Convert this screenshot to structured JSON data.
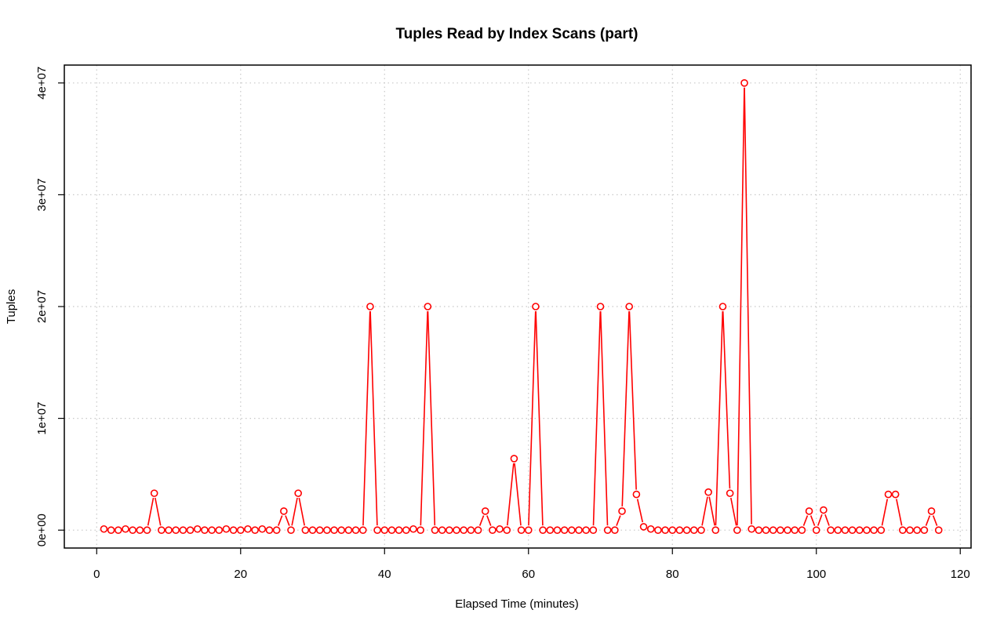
{
  "chart_data": {
    "type": "line",
    "title": "Tuples Read by Index Scans (part)",
    "xlabel": "Elapsed Time (minutes)",
    "ylabel": "Tuples",
    "xlim": [
      -4.5,
      121.5
    ],
    "ylim": [
      -1600000,
      41600000
    ],
    "x_ticks": [
      0,
      20,
      40,
      60,
      80,
      100,
      120
    ],
    "x_tick_labels": [
      "0",
      "20",
      "40",
      "60",
      "80",
      "100",
      "120"
    ],
    "y_ticks": [
      0,
      10000000,
      20000000,
      30000000,
      40000000
    ],
    "y_tick_labels": [
      "0e+00",
      "1e+07",
      "2e+07",
      "3e+07",
      "4e+07"
    ],
    "grid": true,
    "line_color": "#ff0000",
    "series": [
      {
        "x": [
          1,
          2,
          3,
          4,
          5,
          6,
          7,
          8,
          9,
          10,
          11,
          12,
          13,
          14,
          15,
          16,
          17,
          18,
          19,
          20,
          21,
          22,
          23,
          24,
          25,
          26,
          27,
          28,
          29,
          30,
          31,
          32,
          33,
          34,
          35,
          36,
          37,
          38,
          39,
          40,
          41,
          42,
          43,
          44,
          45,
          46,
          47,
          48,
          49,
          50,
          51,
          52,
          53,
          54,
          55,
          56,
          57,
          58,
          59,
          60,
          61,
          62,
          63,
          64,
          65,
          66,
          67,
          68,
          69,
          70,
          71,
          72,
          73,
          74,
          75,
          76,
          77,
          78,
          79,
          80,
          81,
          82,
          83,
          84,
          85,
          86,
          87,
          88,
          89,
          90,
          91,
          92,
          93,
          94,
          95,
          96,
          97,
          98,
          99,
          100,
          101,
          102,
          103,
          104,
          105,
          106,
          107,
          108,
          109,
          110,
          111,
          112,
          113,
          114,
          115,
          116,
          117
        ],
        "values": [
          100000,
          0,
          0,
          100000,
          0,
          0,
          0,
          3300000,
          0,
          0,
          0,
          0,
          0,
          100000,
          0,
          0,
          0,
          100000,
          0,
          0,
          100000,
          0,
          100000,
          0,
          0,
          1700000,
          0,
          3300000,
          0,
          0,
          0,
          0,
          0,
          0,
          0,
          0,
          0,
          20000000,
          0,
          0,
          0,
          0,
          0,
          100000,
          0,
          20000000,
          0,
          0,
          0,
          0,
          0,
          0,
          0,
          1700000,
          0,
          100000,
          0,
          6400000,
          0,
          0,
          20000000,
          0,
          0,
          0,
          0,
          0,
          0,
          0,
          0,
          20000000,
          0,
          0,
          1700000,
          20000000,
          3200000,
          300000,
          100000,
          0,
          0,
          0,
          0,
          0,
          0,
          0,
          3400000,
          0,
          20000000,
          3300000,
          0,
          40000000,
          100000,
          0,
          0,
          0,
          0,
          0,
          0,
          0,
          1700000,
          0,
          1800000,
          0,
          0,
          0,
          0,
          0,
          0,
          0,
          0,
          3200000,
          3200000,
          0,
          0,
          0,
          0,
          1700000,
          0
        ]
      }
    ]
  }
}
